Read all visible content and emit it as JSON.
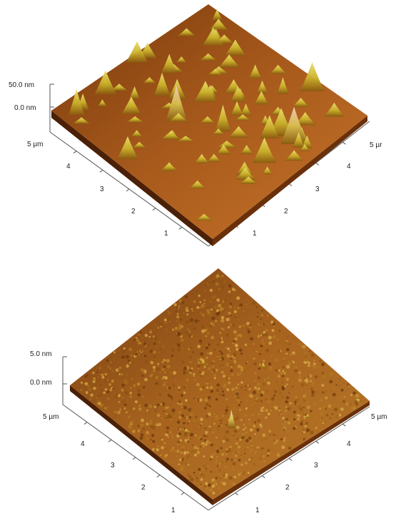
{
  "colors": {
    "surface_dark": "#5a2a06",
    "surface_mid": "#a0561a",
    "surface_light": "#d88a35",
    "peak": "#d8c43a",
    "peak_highlight": "#f0c0b0",
    "axis": "#555555"
  },
  "panels": [
    {
      "label_z_top": "50.0 nm",
      "label_z_zero": "0.0 nm",
      "label_left_max": "5 µm",
      "label_right_max": "5 µr",
      "left_ticks": [
        "4",
        "3",
        "2",
        "1"
      ],
      "right_ticks": [
        "4",
        "3",
        "2",
        "1"
      ],
      "texture": "sparse tall conical peaks"
    },
    {
      "label_z_top": "5.0 nm",
      "label_z_zero": "0.0 nm",
      "label_left_max": "5 µm",
      "label_right_max": "5 µm",
      "left_ticks": [
        "4",
        "3",
        "2",
        "1"
      ],
      "right_ticks": [
        "4",
        "3",
        "2",
        "1"
      ],
      "texture": "dense fine granular roughness"
    }
  ]
}
